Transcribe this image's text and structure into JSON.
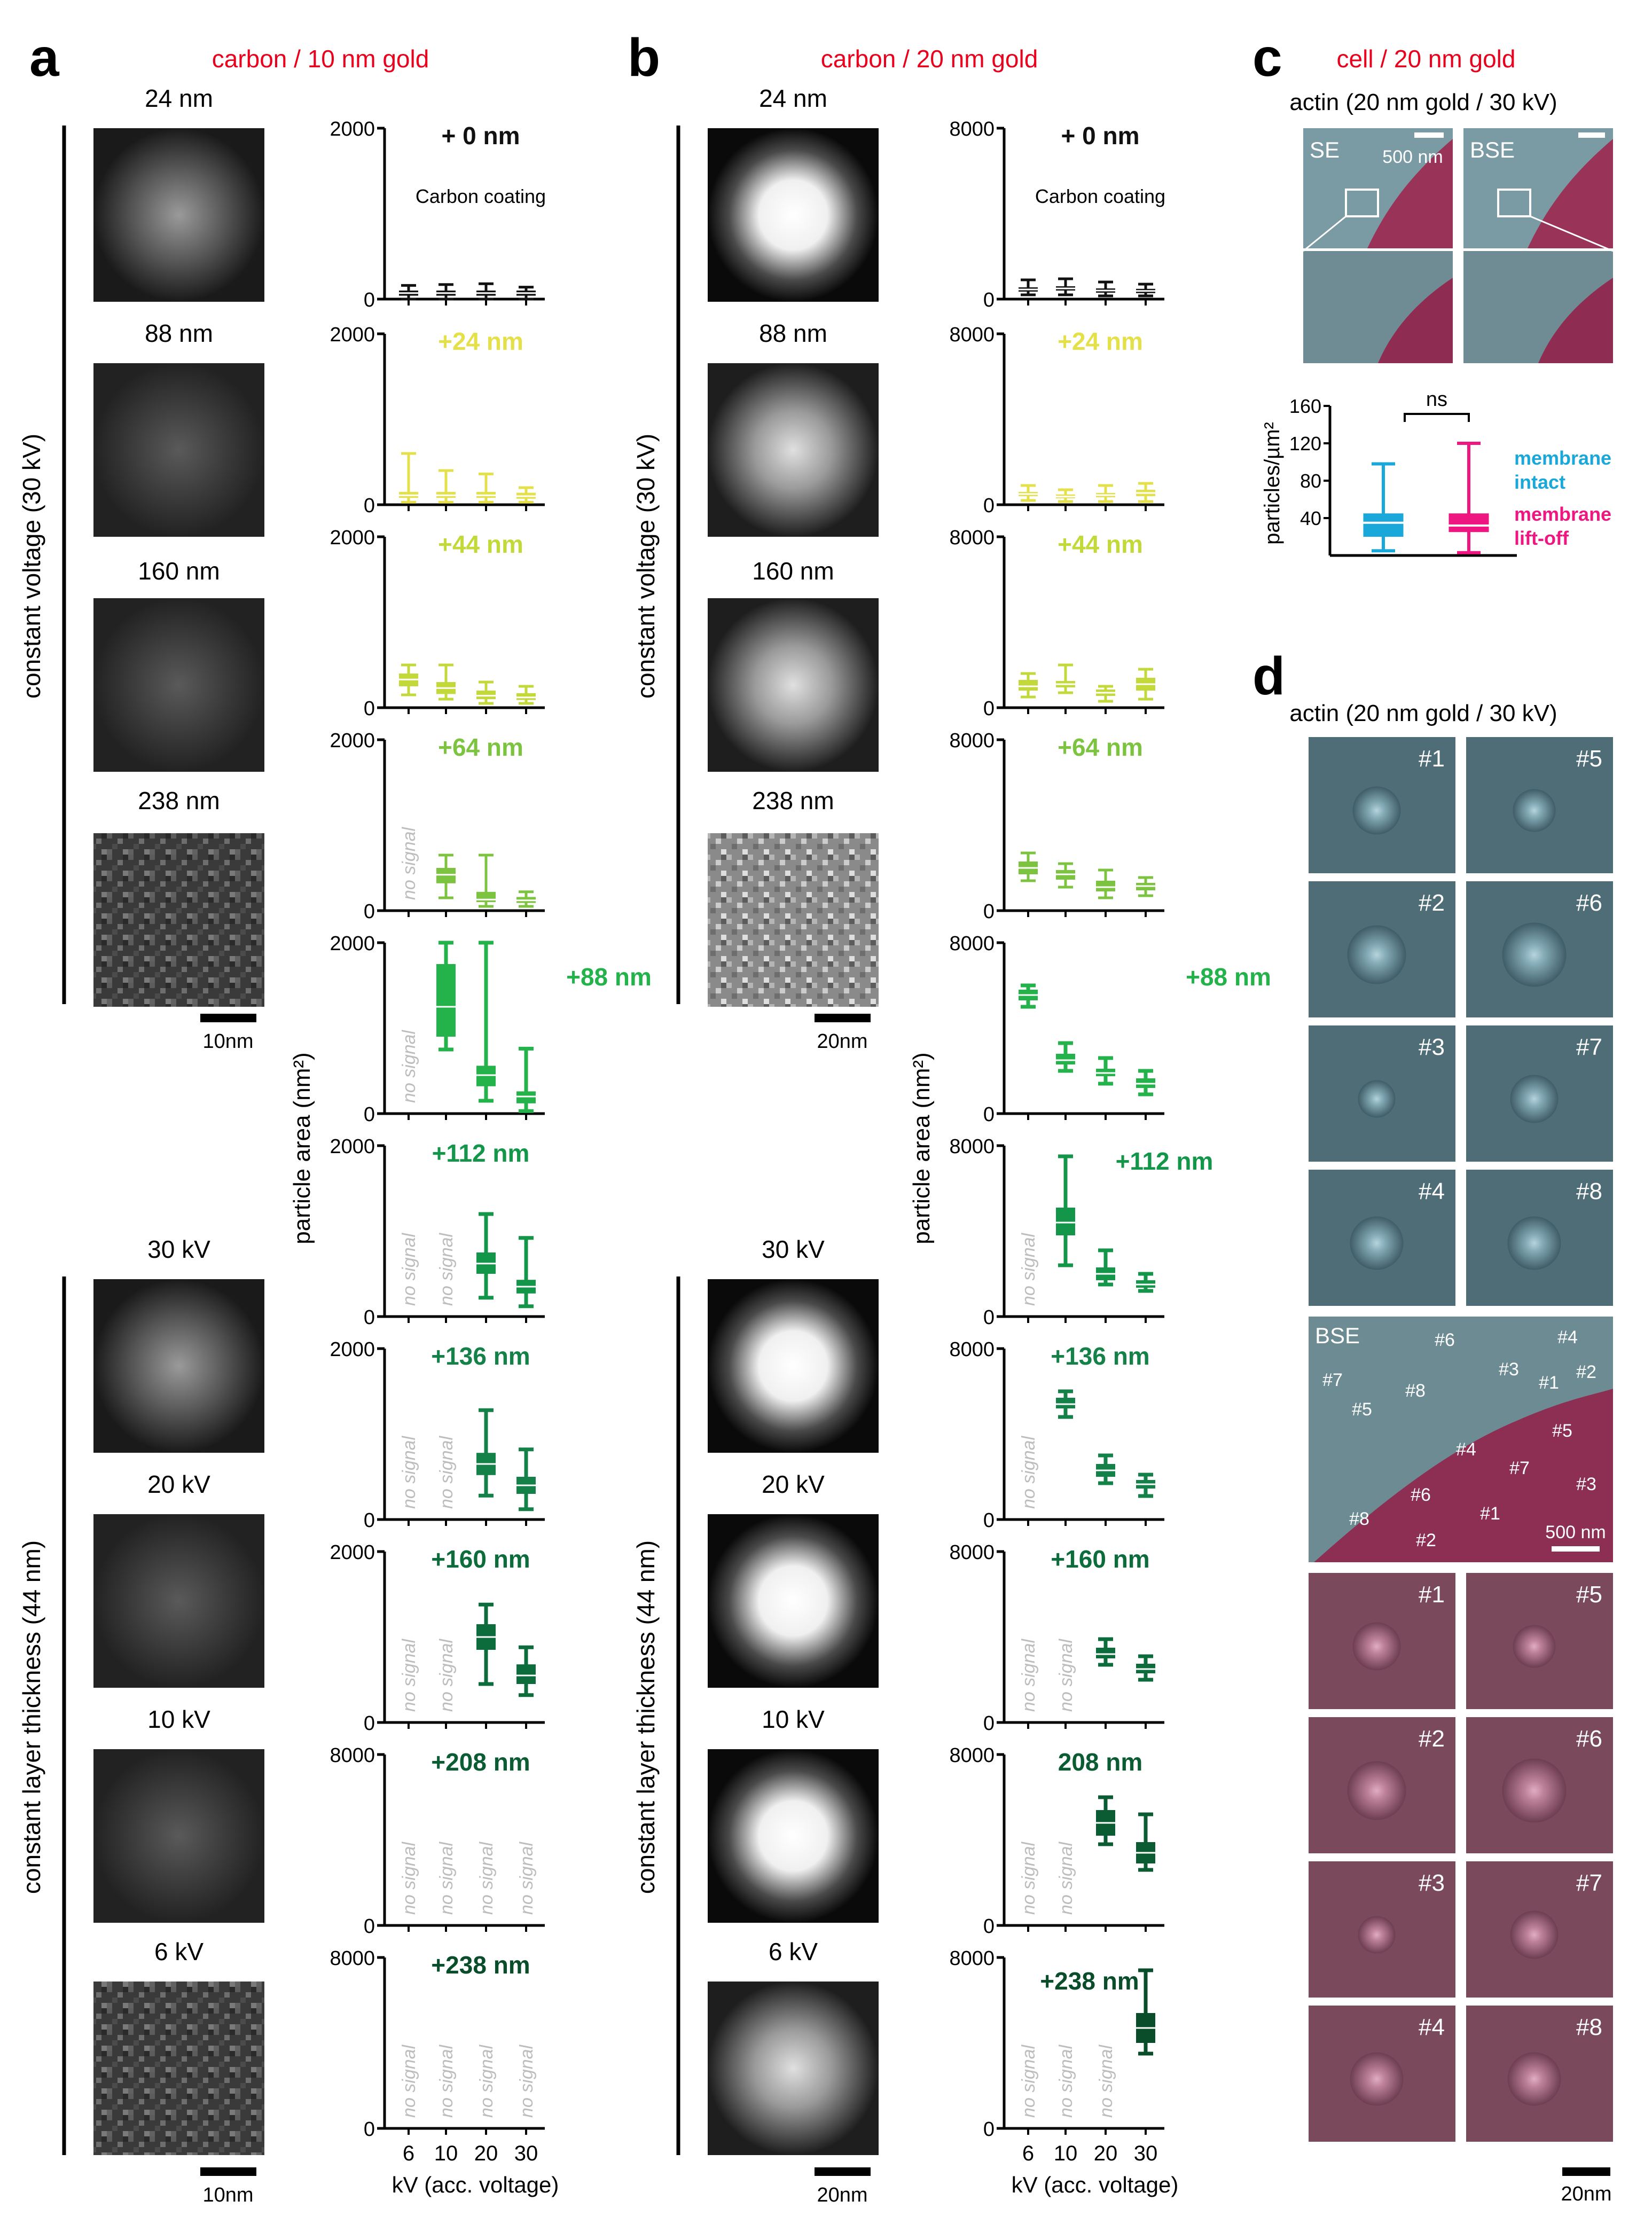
{
  "panels": {
    "a": {
      "letter": "a",
      "title": "carbon / 10 nm gold",
      "image_labels_top": [
        "24 nm",
        "88 nm",
        "160 nm",
        "238 nm"
      ],
      "image_labels_bottom": [
        "30 kV",
        "20 kV",
        "10 kV",
        "6 kV"
      ],
      "side_label_top": "constant voltage (30 kV)",
      "side_label_bottom": "constant layer thickness (44 nm)",
      "scalebar_top": "10nm",
      "scalebar_bottom": "10nm"
    },
    "b": {
      "letter": "b",
      "title": "carbon / 20 nm gold",
      "image_labels_top": [
        "24 nm",
        "88 nm",
        "160 nm",
        "238 nm"
      ],
      "image_labels_bottom": [
        "30 kV",
        "20 kV",
        "10 kV",
        "6 kV"
      ],
      "side_label_top": "constant voltage (30 kV)",
      "side_label_bottom": "constant layer thickness (44 nm)",
      "scalebar_top": "20nm",
      "scalebar_bottom": "20nm"
    },
    "c": {
      "letter": "c",
      "title": "cell / 20 nm gold",
      "subtitle": "actin (20 nm gold / 30 kV)",
      "se_label": "SE",
      "bse_label": "BSE",
      "scalebar": "500 nm",
      "significance": "ns",
      "legend_intact": "membrane\nintact",
      "legend_liftoff": "membrane\nlift-off"
    },
    "d": {
      "letter": "d",
      "subtitle": "actin (20 nm gold / 30 kV)",
      "tile_labels": [
        "#1",
        "#5",
        "#2",
        "#6",
        "#3",
        "#7",
        "#4",
        "#8"
      ],
      "overview_label": "BSE",
      "overview_marks": [
        "#6",
        "#4",
        "#7",
        "#3",
        "#1",
        "#2",
        "#5",
        "#8",
        "#5",
        "#4",
        "#7",
        "#3",
        "#6",
        "#1",
        "#8",
        "#2"
      ],
      "overview_scalebar": "500 nm",
      "scalebar": "20nm"
    }
  },
  "axes_common": {
    "ylabel": "particle area (nm²)",
    "xlabel": "kV (acc. voltage)",
    "no_signal": "no signal",
    "carbon_coating": "Carbon coating"
  },
  "colors": {
    "panel_title": "#e8001c",
    "membrane_intact": "#1aa7d9",
    "membrane_liftoff": "#ee1680",
    "rows": [
      "#111111",
      "#e3e04a",
      "#c3d93a",
      "#7cc43f",
      "#24b24b",
      "#14964a",
      "#138148",
      "#0d6c3c",
      "#0c5c33",
      "#0a4d2b"
    ]
  },
  "chart_data": [
    {
      "type": "box",
      "panel": "a",
      "x_categories": [
        "6",
        "10",
        "20",
        "30"
      ],
      "xlabel": "kV (acc. voltage)",
      "ylabel": "particle area (nm²)",
      "rows": [
        {
          "label": "+ 0 nm",
          "note": "Carbon coating",
          "ylim": [
            0,
            2000
          ],
          "ticks": [
            0,
            2000
          ],
          "boxes": [
            {
              "x": "6",
              "min": 0,
              "q1": 40,
              "med": 70,
              "q3": 100,
              "max": 160
            },
            {
              "x": "10",
              "min": 0,
              "q1": 40,
              "med": 70,
              "q3": 100,
              "max": 170
            },
            {
              "x": "20",
              "min": 0,
              "q1": 40,
              "med": 70,
              "q3": 100,
              "max": 180
            },
            {
              "x": "30",
              "min": 0,
              "q1": 40,
              "med": 70,
              "q3": 100,
              "max": 140
            }
          ]
        },
        {
          "label": "+24 nm",
          "ylim": [
            0,
            2000
          ],
          "ticks": [
            0,
            2000
          ],
          "boxes": [
            {
              "x": "6",
              "min": 30,
              "q1": 80,
              "med": 110,
              "q3": 150,
              "max": 600
            },
            {
              "x": "10",
              "min": 30,
              "q1": 80,
              "med": 110,
              "q3": 150,
              "max": 400
            },
            {
              "x": "20",
              "min": 30,
              "q1": 80,
              "med": 110,
              "q3": 150,
              "max": 360
            },
            {
              "x": "30",
              "min": 30,
              "q1": 70,
              "med": 100,
              "q3": 140,
              "max": 200
            }
          ]
        },
        {
          "label": "+44 nm",
          "ylim": [
            0,
            2000
          ],
          "ticks": [
            0,
            2000
          ],
          "boxes": [
            {
              "x": "6",
              "min": 150,
              "q1": 250,
              "med": 330,
              "q3": 400,
              "max": 500
            },
            {
              "x": "10",
              "min": 100,
              "q1": 160,
              "med": 230,
              "q3": 300,
              "max": 500
            },
            {
              "x": "20",
              "min": 50,
              "q1": 100,
              "med": 140,
              "q3": 200,
              "max": 300
            },
            {
              "x": "30",
              "min": 50,
              "q1": 90,
              "med": 120,
              "q3": 170,
              "max": 250
            }
          ]
        },
        {
          "label": "+64 nm",
          "ylim": [
            0,
            2000
          ],
          "ticks": [
            0,
            2000
          ],
          "boxes": [
            {
              "x": "6",
              "no_signal": true
            },
            {
              "x": "10",
              "min": 150,
              "q1": 320,
              "med": 420,
              "q3": 500,
              "max": 650
            },
            {
              "x": "20",
              "min": 50,
              "q1": 100,
              "med": 130,
              "q3": 220,
              "max": 650
            },
            {
              "x": "30",
              "min": 50,
              "q1": 90,
              "med": 120,
              "q3": 160,
              "max": 220
            }
          ]
        },
        {
          "label": "+88 nm",
          "ylim": [
            0,
            2000
          ],
          "ticks": [
            0,
            2000
          ],
          "boxes": [
            {
              "x": "6",
              "no_signal": true
            },
            {
              "x": "10",
              "min": 750,
              "q1": 900,
              "med": 1250,
              "q3": 1750,
              "max": 2000
            },
            {
              "x": "20",
              "min": 150,
              "q1": 320,
              "med": 450,
              "q3": 560,
              "max": 2000
            },
            {
              "x": "30",
              "min": 30,
              "q1": 120,
              "med": 200,
              "q3": 260,
              "max": 760
            }
          ]
        },
        {
          "label": "+112 nm",
          "ylim": [
            0,
            2000
          ],
          "ticks": [
            0,
            2000
          ],
          "boxes": [
            {
              "x": "6",
              "no_signal": true
            },
            {
              "x": "10",
              "no_signal": true
            },
            {
              "x": "20",
              "min": 220,
              "q1": 500,
              "med": 620,
              "q3": 750,
              "max": 1200
            },
            {
              "x": "30",
              "min": 120,
              "q1": 270,
              "med": 350,
              "q3": 430,
              "max": 920
            }
          ]
        },
        {
          "label": "+136 nm",
          "ylim": [
            0,
            2000
          ],
          "ticks": [
            0,
            2000
          ],
          "boxes": [
            {
              "x": "6",
              "no_signal": true
            },
            {
              "x": "10",
              "no_signal": true
            },
            {
              "x": "20",
              "min": 280,
              "q1": 520,
              "med": 650,
              "q3": 780,
              "max": 1280
            },
            {
              "x": "30",
              "min": 120,
              "q1": 300,
              "med": 400,
              "q3": 500,
              "max": 820
            }
          ]
        },
        {
          "label": "+160 nm",
          "ylim": [
            0,
            2000
          ],
          "ticks": [
            0,
            2000
          ],
          "boxes": [
            {
              "x": "6",
              "no_signal": true
            },
            {
              "x": "10",
              "no_signal": true
            },
            {
              "x": "20",
              "min": 450,
              "q1": 850,
              "med": 1000,
              "q3": 1150,
              "max": 1380
            },
            {
              "x": "30",
              "min": 320,
              "q1": 450,
              "med": 550,
              "q3": 680,
              "max": 880
            }
          ]
        },
        {
          "label": "+208 nm",
          "ylim": [
            0,
            8000
          ],
          "ticks": [
            0,
            8000
          ],
          "boxes": [
            {
              "x": "6",
              "no_signal": true
            },
            {
              "x": "10",
              "no_signal": true
            },
            {
              "x": "20",
              "no_signal": true
            },
            {
              "x": "30",
              "no_signal": true
            }
          ]
        },
        {
          "label": "+238 nm",
          "ylim": [
            0,
            8000
          ],
          "ticks": [
            0,
            8000
          ],
          "boxes": [
            {
              "x": "6",
              "no_signal": true
            },
            {
              "x": "10",
              "no_signal": true
            },
            {
              "x": "20",
              "no_signal": true
            },
            {
              "x": "30",
              "no_signal": true
            }
          ]
        }
      ]
    },
    {
      "type": "box",
      "panel": "b",
      "x_categories": [
        "6",
        "10",
        "20",
        "30"
      ],
      "xlabel": "kV (acc. voltage)",
      "ylabel": "particle area (nm²)",
      "rows": [
        {
          "label": "+ 0 nm",
          "note": "Carbon coating",
          "ylim": [
            0,
            8000
          ],
          "ticks": [
            0,
            8000
          ],
          "boxes": [
            {
              "x": "6",
              "min": 200,
              "q1": 350,
              "med": 450,
              "q3": 550,
              "max": 900
            },
            {
              "x": "10",
              "min": 200,
              "q1": 400,
              "med": 500,
              "q3": 600,
              "max": 950
            },
            {
              "x": "20",
              "min": 150,
              "q1": 300,
              "med": 400,
              "q3": 500,
              "max": 800
            },
            {
              "x": "30",
              "min": 150,
              "q1": 280,
              "med": 380,
              "q3": 480,
              "max": 700
            }
          ]
        },
        {
          "label": "+24 nm",
          "ylim": [
            0,
            8000
          ],
          "ticks": [
            0,
            8000
          ],
          "boxes": [
            {
              "x": "6",
              "min": 200,
              "q1": 400,
              "med": 500,
              "q3": 600,
              "max": 900
            },
            {
              "x": "10",
              "min": 150,
              "q1": 300,
              "med": 380,
              "q3": 480,
              "max": 700
            },
            {
              "x": "20",
              "min": 150,
              "q1": 350,
              "med": 450,
              "q3": 550,
              "max": 900
            },
            {
              "x": "30",
              "min": 150,
              "q1": 400,
              "med": 550,
              "q3": 700,
              "max": 1000
            }
          ]
        },
        {
          "label": "+44 nm",
          "ylim": [
            0,
            8000
          ],
          "ticks": [
            0,
            8000
          ],
          "boxes": [
            {
              "x": "6",
              "min": 500,
              "q1": 800,
              "med": 1000,
              "q3": 1300,
              "max": 1600
            },
            {
              "x": "10",
              "min": 700,
              "q1": 950,
              "med": 1100,
              "q3": 1250,
              "max": 2000
            },
            {
              "x": "20",
              "min": 300,
              "q1": 550,
              "med": 700,
              "q3": 850,
              "max": 1000
            },
            {
              "x": "30",
              "min": 400,
              "q1": 800,
              "med": 1100,
              "q3": 1400,
              "max": 1800
            }
          ]
        },
        {
          "label": "+64 nm",
          "ylim": [
            0,
            8000
          ],
          "ticks": [
            0,
            8000
          ],
          "boxes": [
            {
              "x": "6",
              "min": 1400,
              "q1": 1700,
              "med": 2000,
              "q3": 2300,
              "max": 2700
            },
            {
              "x": "10",
              "min": 1100,
              "q1": 1450,
              "med": 1700,
              "q3": 1900,
              "max": 2200
            },
            {
              "x": "20",
              "min": 600,
              "q1": 900,
              "med": 1100,
              "q3": 1400,
              "max": 1900
            },
            {
              "x": "30",
              "min": 700,
              "q1": 950,
              "med": 1150,
              "q3": 1300,
              "max": 1550
            }
          ]
        },
        {
          "label": "+88 nm",
          "ylim": [
            0,
            8000
          ],
          "ticks": [
            0,
            8000
          ],
          "boxes": [
            {
              "x": "6",
              "min": 5000,
              "q1": 5300,
              "med": 5550,
              "q3": 5800,
              "max": 6000
            },
            {
              "x": "10",
              "min": 2000,
              "q1": 2300,
              "med": 2500,
              "q3": 2800,
              "max": 3300
            },
            {
              "x": "20",
              "min": 1400,
              "q1": 1750,
              "med": 1900,
              "q3": 2100,
              "max": 2600
            },
            {
              "x": "30",
              "min": 900,
              "q1": 1200,
              "med": 1400,
              "q3": 1650,
              "max": 2000
            }
          ]
        },
        {
          "label": "+112 nm",
          "ylim": [
            0,
            8000
          ],
          "ticks": [
            0,
            8000
          ],
          "boxes": [
            {
              "x": "6",
              "no_signal": true
            },
            {
              "x": "10",
              "min": 2400,
              "q1": 3800,
              "med": 4400,
              "q3": 5100,
              "max": 7500
            },
            {
              "x": "20",
              "min": 1500,
              "q1": 1700,
              "med": 2000,
              "q3": 2300,
              "max": 3100
            },
            {
              "x": "30",
              "min": 1200,
              "q1": 1350,
              "med": 1500,
              "q3": 1700,
              "max": 2000
            }
          ]
        },
        {
          "label": "+136 nm",
          "ylim": [
            0,
            8000
          ],
          "ticks": [
            0,
            8000
          ],
          "boxes": [
            {
              "x": "6",
              "no_signal": true
            },
            {
              "x": "10",
              "min": 4800,
              "q1": 5200,
              "med": 5400,
              "q3": 5700,
              "max": 6000
            },
            {
              "x": "20",
              "min": 1700,
              "q1": 2000,
              "med": 2300,
              "q3": 2600,
              "max": 3000
            },
            {
              "x": "30",
              "min": 1100,
              "q1": 1450,
              "med": 1650,
              "q3": 1850,
              "max": 2100
            }
          ]
        },
        {
          "label": "+160 nm",
          "ylim": [
            0,
            8000
          ],
          "ticks": [
            0,
            8000
          ],
          "boxes": [
            {
              "x": "6",
              "no_signal": true
            },
            {
              "x": "10",
              "no_signal": true
            },
            {
              "x": "20",
              "min": 2700,
              "q1": 3000,
              "med": 3200,
              "q3": 3500,
              "max": 3900
            },
            {
              "x": "30",
              "min": 2000,
              "q1": 2300,
              "med": 2500,
              "q3": 2750,
              "max": 3100
            }
          ]
        },
        {
          "label": "208 nm",
          "ylim": [
            0,
            8000
          ],
          "ticks": [
            0,
            8000
          ],
          "boxes": [
            {
              "x": "6",
              "no_signal": true
            },
            {
              "x": "10",
              "no_signal": true
            },
            {
              "x": "20",
              "min": 3800,
              "q1": 4200,
              "med": 4800,
              "q3": 5400,
              "max": 6000
            },
            {
              "x": "30",
              "min": 2600,
              "q1": 2900,
              "med": 3400,
              "q3": 3900,
              "max": 5200
            }
          ]
        },
        {
          "label": "+238 nm",
          "ylim": [
            0,
            8000
          ],
          "ticks": [
            0,
            8000
          ],
          "boxes": [
            {
              "x": "6",
              "no_signal": true
            },
            {
              "x": "10",
              "no_signal": true
            },
            {
              "x": "20",
              "no_signal": true
            },
            {
              "x": "30",
              "min": 3500,
              "q1": 4000,
              "med": 4700,
              "q3": 5400,
              "max": 7400
            }
          ]
        }
      ]
    },
    {
      "type": "box",
      "panel": "c",
      "ylabel": "particles/µm²",
      "ylim": [
        0,
        160
      ],
      "ticks": [
        40,
        80,
        120,
        160
      ],
      "series": [
        {
          "name": "membrane intact",
          "min": 5,
          "q1": 20,
          "med": 35,
          "q3": 45,
          "max": 98
        },
        {
          "name": "membrane lift-off",
          "min": 3,
          "q1": 25,
          "med": 32,
          "q3": 45,
          "max": 120
        }
      ]
    }
  ]
}
